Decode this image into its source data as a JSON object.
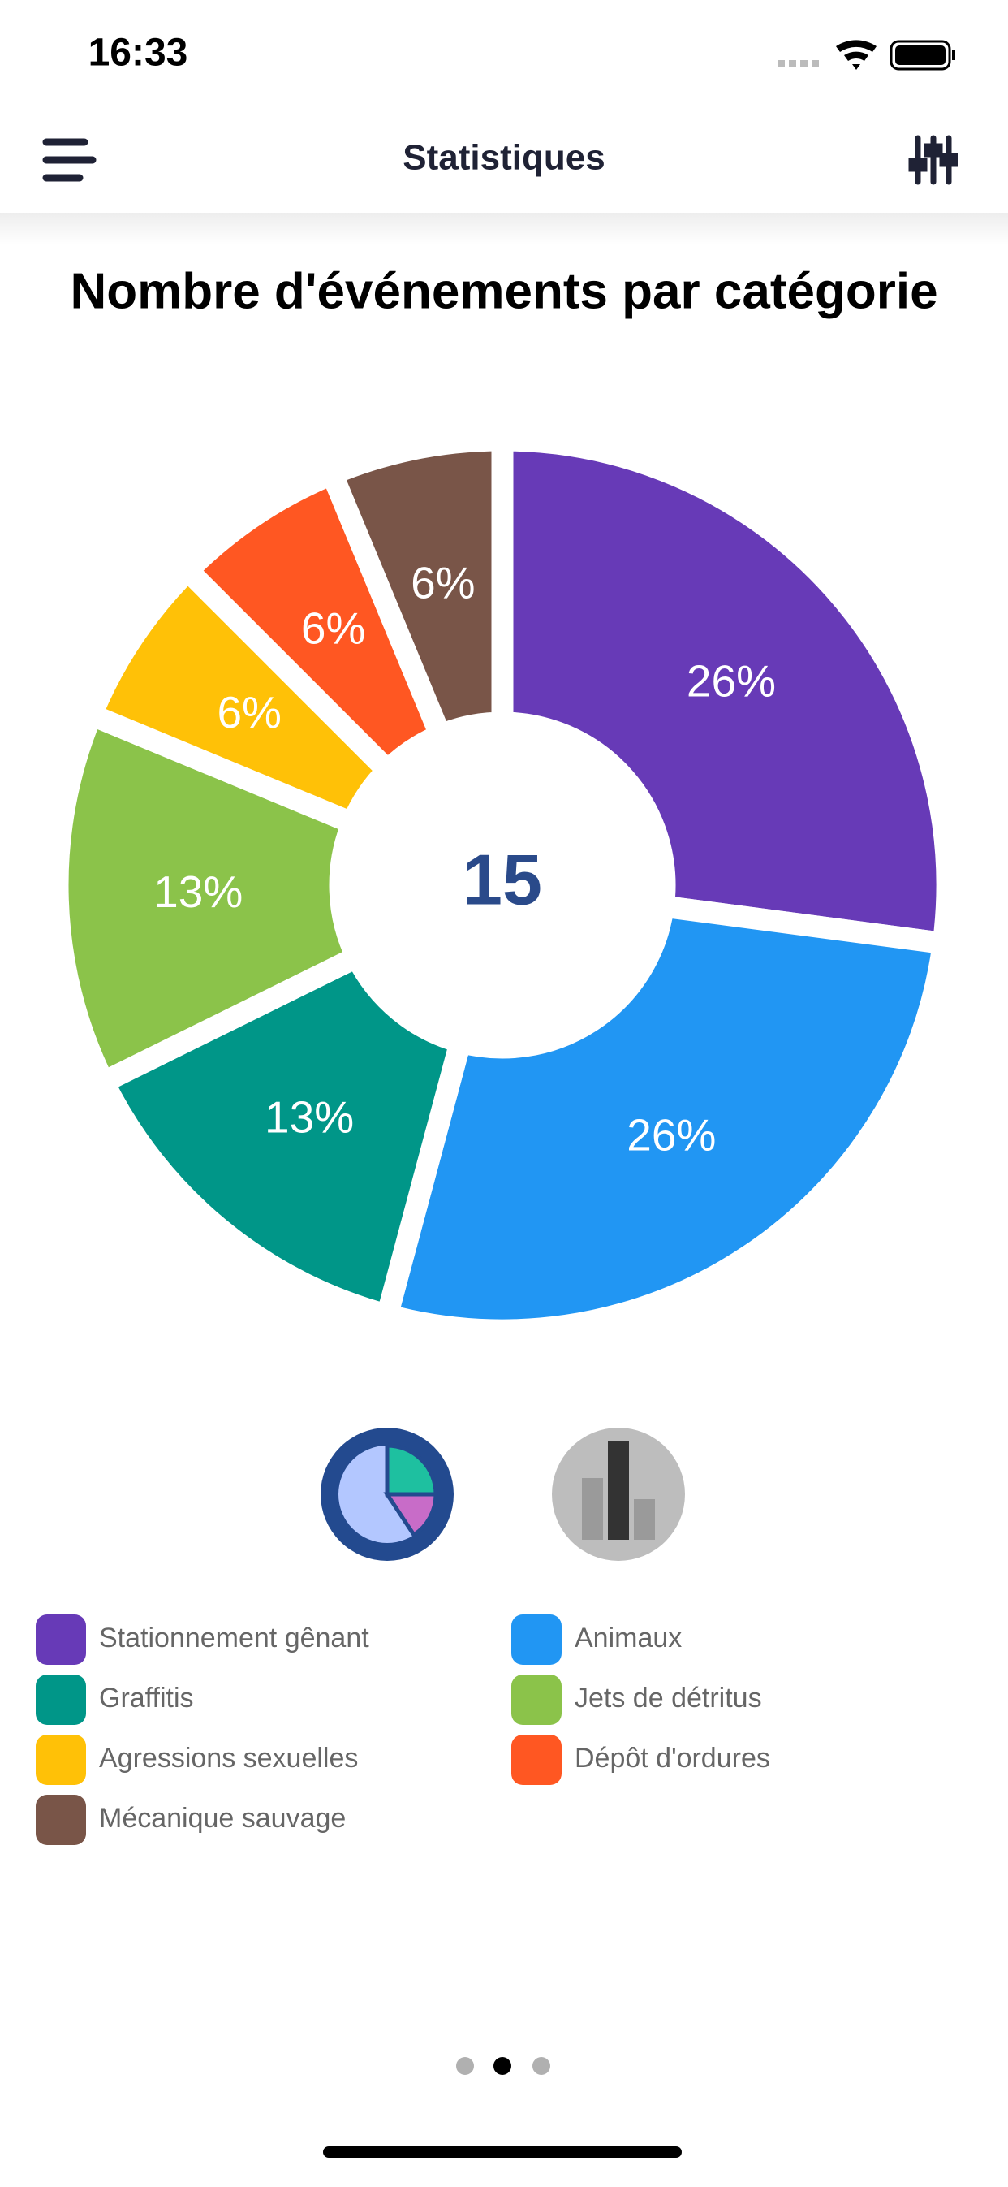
{
  "status_bar": {
    "time": "16:33"
  },
  "nav": {
    "title": "Statistiques"
  },
  "chart_data": {
    "type": "pie",
    "title": "Nombre d'événements par catégorie",
    "total": 15,
    "categories": [
      "Stationnement gênant",
      "Animaux",
      "Graffitis",
      "Jets de détritus",
      "Agressions sexuelles",
      "Dépôt d'ordures",
      "Mécanique sauvage"
    ],
    "values": [
      26,
      26,
      13,
      13,
      6,
      6,
      6
    ],
    "value_labels": [
      "26%",
      "26%",
      "13%",
      "13%",
      "6%",
      "6%",
      "6%"
    ],
    "colors": [
      "#673ab7",
      "#2196f3",
      "#009688",
      "#8bc34a",
      "#ffc107",
      "#ff5722",
      "#795548"
    ]
  }
}
